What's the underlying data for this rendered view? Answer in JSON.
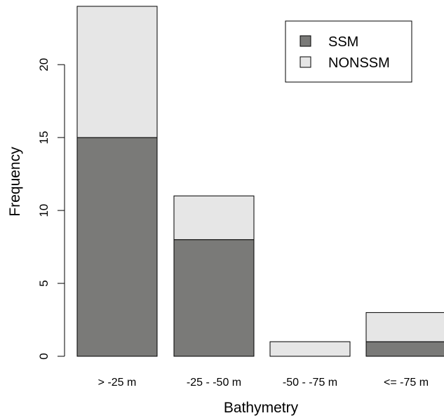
{
  "chart_data": {
    "type": "bar",
    "stacked": true,
    "categories": [
      "> -25 m",
      "-25 - -50 m",
      "-50 - -75 m",
      "<= -75 m"
    ],
    "series": [
      {
        "name": "SSM",
        "values": [
          15,
          8,
          0,
          1
        ],
        "color": "#7a7a78"
      },
      {
        "name": "NONSSM",
        "values": [
          9,
          3,
          1,
          2
        ],
        "color": "#e6e6e6"
      }
    ],
    "xlabel": "Bathymetry",
    "ylabel": "Frequency",
    "ylim": [
      0,
      24
    ],
    "yticks": [
      "0",
      "5",
      "10",
      "15",
      "20"
    ],
    "grid": false,
    "legend_position": "top-right"
  }
}
